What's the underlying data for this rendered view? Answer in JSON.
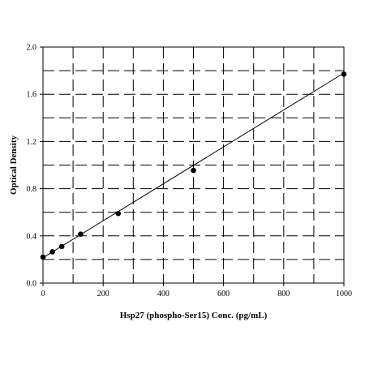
{
  "chart_data": {
    "type": "scatter",
    "title": "",
    "xlabel": "Hsp27 (phospho-Ser15) Conc. (pg/mL)",
    "ylabel": "Optical Density",
    "xlim": [
      0,
      1000
    ],
    "ylim": [
      0,
      2.0
    ],
    "x_ticks": [
      "0",
      "200",
      "400",
      "600",
      "800",
      "1000"
    ],
    "y_ticks": [
      "0.0",
      "0.4",
      "0.8",
      "1.2",
      "1.6",
      "2.0"
    ],
    "grid": true,
    "grid_style": "dashed",
    "fit_line": {
      "type": "linear",
      "from": [
        0,
        0.215
      ],
      "to": [
        1000,
        1.78
      ]
    },
    "points": [
      {
        "x": 0,
        "y": 0.22
      },
      {
        "x": 31.25,
        "y": 0.265
      },
      {
        "x": 62.5,
        "y": 0.31
      },
      {
        "x": 125,
        "y": 0.415
      },
      {
        "x": 250,
        "y": 0.59
      },
      {
        "x": 500,
        "y": 0.955
      },
      {
        "x": 1000,
        "y": 1.77
      }
    ],
    "colors": {
      "marker": "#000000",
      "line": "#000000",
      "grid": "#000000",
      "background": "#ffffff"
    }
  }
}
